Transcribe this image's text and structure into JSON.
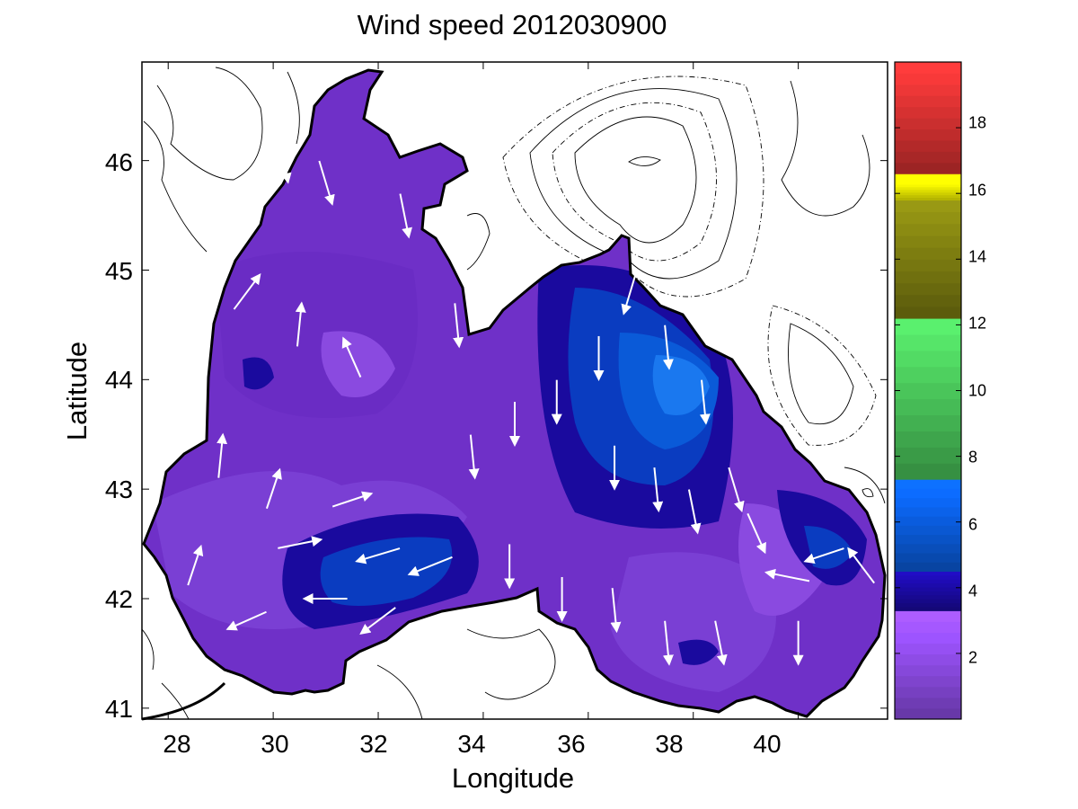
{
  "title": "Wind speed 2012030900",
  "xlabel": "Longitude",
  "ylabel": "Latitude",
  "x_ticks": [
    "28",
    "30",
    "32",
    "34",
    "36",
    "38",
    "40"
  ],
  "y_ticks": [
    "41",
    "42",
    "43",
    "44",
    "45",
    "46"
  ],
  "colorbar": {
    "ticks": [
      "2",
      "4",
      "6",
      "8",
      "10",
      "12",
      "14",
      "16",
      "18"
    ],
    "range": [
      0,
      20
    ],
    "bands": [
      {
        "from": 0,
        "to": 3.3,
        "color": "#8a4ae0"
      },
      {
        "from": 3.3,
        "to": 4.5,
        "color": "#1a0a9e"
      },
      {
        "from": 4.5,
        "to": 7.3,
        "color": "#0a5ad8"
      },
      {
        "from": 7.3,
        "to": 12.2,
        "color": "#48c058"
      },
      {
        "from": 12.2,
        "to": 15.8,
        "color": "#7a7a10"
      },
      {
        "from": 15.8,
        "to": 16.6,
        "color": "#f0f000"
      },
      {
        "from": 16.6,
        "to": 20,
        "color": "#d03030"
      }
    ]
  },
  "chart_data": {
    "type": "heatmap",
    "title": "Wind speed 2012030900",
    "xlabel": "Longitude",
    "ylabel": "Latitude",
    "xlim": [
      27.5,
      41.7
    ],
    "ylim": [
      40.9,
      46.9
    ],
    "variable": "wind speed",
    "colorbar_range": [
      0,
      20
    ],
    "speed_regions": [
      {
        "lon": 33.5,
        "lat": 44.0,
        "speed": 2.5
      },
      {
        "lon": 32.3,
        "lat": 42.3,
        "speed": 5.5
      },
      {
        "lon": 37.2,
        "lat": 44.0,
        "speed": 6.5
      },
      {
        "lon": 40.5,
        "lat": 42.5,
        "speed": 4.5
      },
      {
        "lon": 29.7,
        "lat": 44.1,
        "speed": 3.8
      },
      {
        "lon": 37.8,
        "lat": 41.6,
        "speed": 3.8
      }
    ],
    "wind_vectors": [
      {
        "lon": 30.2,
        "lat": 46.0,
        "u": 0.2,
        "v": -1.0
      },
      {
        "lon": 31.0,
        "lat": 45.8,
        "u": 0.3,
        "v": -1.0
      },
      {
        "lon": 32.5,
        "lat": 45.5,
        "u": 0.2,
        "v": -1.0
      },
      {
        "lon": 30.5,
        "lat": 44.5,
        "u": 0.1,
        "v": 1.0
      },
      {
        "lon": 29.5,
        "lat": 44.8,
        "u": 0.6,
        "v": 0.8
      },
      {
        "lon": 31.5,
        "lat": 44.2,
        "u": -0.4,
        "v": 0.9
      },
      {
        "lon": 33.5,
        "lat": 44.5,
        "u": 0.1,
        "v": -1.0
      },
      {
        "lon": 29.0,
        "lat": 43.3,
        "u": 0.1,
        "v": 1.0
      },
      {
        "lon": 30.0,
        "lat": 43.0,
        "u": 0.3,
        "v": 0.9
      },
      {
        "lon": 31.5,
        "lat": 42.9,
        "u": 0.9,
        "v": 0.3
      },
      {
        "lon": 30.5,
        "lat": 42.5,
        "u": 1.0,
        "v": 0.2
      },
      {
        "lon": 32.0,
        "lat": 42.4,
        "u": -1.0,
        "v": -0.3
      },
      {
        "lon": 33.0,
        "lat": 42.3,
        "u": -1.0,
        "v": -0.4
      },
      {
        "lon": 31.0,
        "lat": 42.0,
        "u": -1.0,
        "v": 0.0
      },
      {
        "lon": 32.0,
        "lat": 41.8,
        "u": -0.8,
        "v": -0.6
      },
      {
        "lon": 29.5,
        "lat": 41.8,
        "u": -0.9,
        "v": -0.4
      },
      {
        "lon": 28.5,
        "lat": 42.3,
        "u": 0.3,
        "v": 0.9
      },
      {
        "lon": 33.8,
        "lat": 43.3,
        "u": 0.1,
        "v": -1.0
      },
      {
        "lon": 34.6,
        "lat": 43.6,
        "u": 0.0,
        "v": -1.0
      },
      {
        "lon": 35.4,
        "lat": 43.8,
        "u": 0.0,
        "v": -1.0
      },
      {
        "lon": 36.2,
        "lat": 44.2,
        "u": 0.0,
        "v": -1.0
      },
      {
        "lon": 36.8,
        "lat": 44.8,
        "u": -0.3,
        "v": -1.0
      },
      {
        "lon": 37.5,
        "lat": 44.3,
        "u": 0.1,
        "v": -1.0
      },
      {
        "lon": 38.2,
        "lat": 43.8,
        "u": 0.1,
        "v": -1.0
      },
      {
        "lon": 36.5,
        "lat": 43.2,
        "u": 0.0,
        "v": -1.0
      },
      {
        "lon": 37.3,
        "lat": 43.0,
        "u": 0.1,
        "v": -1.0
      },
      {
        "lon": 38.0,
        "lat": 42.8,
        "u": 0.2,
        "v": -1.0
      },
      {
        "lon": 34.5,
        "lat": 42.3,
        "u": 0.0,
        "v": -1.0
      },
      {
        "lon": 35.5,
        "lat": 42.0,
        "u": 0.0,
        "v": -1.0
      },
      {
        "lon": 36.5,
        "lat": 41.9,
        "u": 0.1,
        "v": -1.0
      },
      {
        "lon": 37.5,
        "lat": 41.6,
        "u": 0.1,
        "v": -1.0
      },
      {
        "lon": 38.5,
        "lat": 41.6,
        "u": 0.2,
        "v": -1.0
      },
      {
        "lon": 39.2,
        "lat": 42.6,
        "u": 0.4,
        "v": -0.9
      },
      {
        "lon": 39.8,
        "lat": 42.2,
        "u": -1.0,
        "v": 0.2
      },
      {
        "lon": 40.5,
        "lat": 42.4,
        "u": -0.9,
        "v": -0.3
      },
      {
        "lon": 41.2,
        "lat": 42.3,
        "u": -0.6,
        "v": 0.8
      },
      {
        "lon": 40.0,
        "lat": 41.6,
        "u": 0.0,
        "v": -1.0
      },
      {
        "lon": 38.8,
        "lat": 43.0,
        "u": 0.3,
        "v": -1.0
      }
    ]
  }
}
